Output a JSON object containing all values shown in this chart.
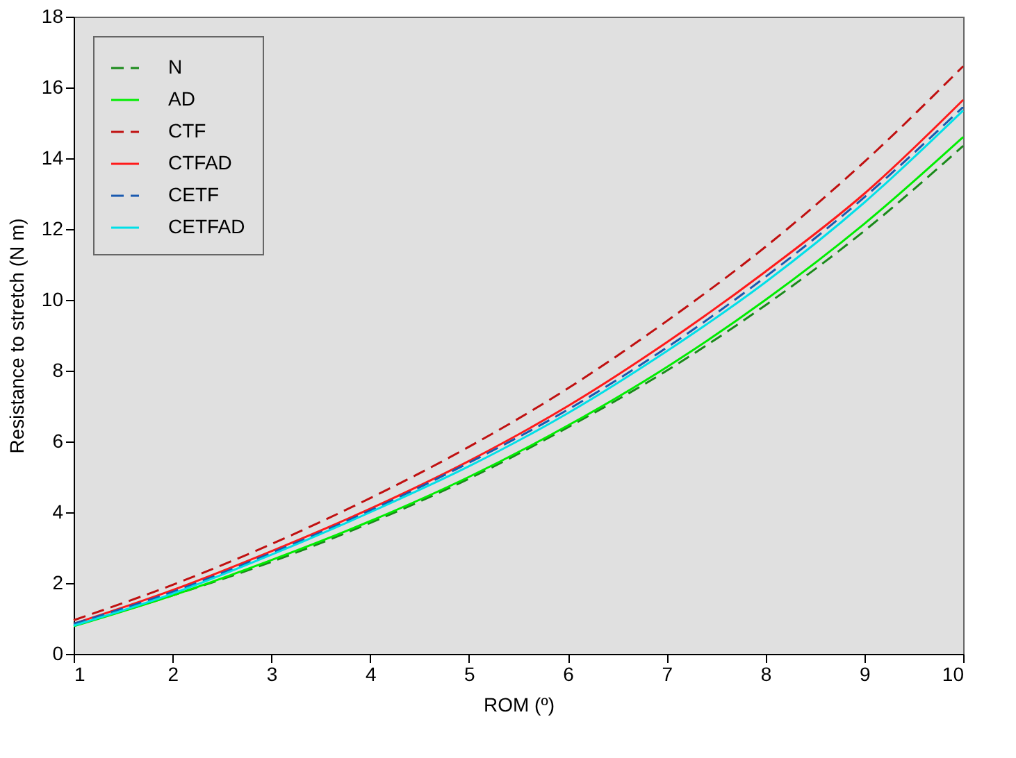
{
  "chart_data": {
    "type": "line",
    "xlabel": "ROM (º)",
    "ylabel": "Resistance to stretch (N m)",
    "x": [
      1,
      2,
      3,
      4,
      5,
      6,
      7,
      8,
      9,
      10
    ],
    "xlim": [
      1,
      10
    ],
    "xticks": [
      1,
      2,
      3,
      4,
      5,
      6,
      7,
      8,
      9,
      10
    ],
    "ylim": [
      0,
      18
    ],
    "yticks": [
      0,
      2,
      4,
      6,
      8,
      10,
      12,
      14,
      16,
      18
    ],
    "grid": false,
    "legend": "top left",
    "marker": "none",
    "series": [
      {
        "name": "N",
        "color": "#1a8a1a",
        "line_style": "dashed",
        "values": [
          0.8,
          1.65,
          2.6,
          3.7,
          4.95,
          6.4,
          8.0,
          9.85,
          11.95,
          14.35
        ]
      },
      {
        "name": "AD",
        "color": "#00ee00",
        "line_style": "solid",
        "values": [
          0.78,
          1.65,
          2.65,
          3.75,
          5.0,
          6.45,
          8.1,
          10.0,
          12.15,
          14.6
        ]
      },
      {
        "name": "CTF",
        "color": "#c01010",
        "line_style": "dashed",
        "values": [
          0.95,
          1.95,
          3.1,
          4.4,
          5.85,
          7.5,
          9.4,
          11.5,
          13.9,
          16.6
        ]
      },
      {
        "name": "CTFAD",
        "color": "#ff1a1a",
        "line_style": "solid",
        "values": [
          0.85,
          1.8,
          2.9,
          4.1,
          5.45,
          7.0,
          8.8,
          10.8,
          13.0,
          15.65
        ]
      },
      {
        "name": "CETF",
        "color": "#1a5ab0",
        "line_style": "dashed",
        "values": [
          0.85,
          1.75,
          2.85,
          4.05,
          5.4,
          6.9,
          8.65,
          10.65,
          12.9,
          15.45
        ]
      },
      {
        "name": "CETFAD",
        "color": "#00e0e8",
        "line_style": "solid",
        "values": [
          0.8,
          1.7,
          2.8,
          4.0,
          5.3,
          6.8,
          8.55,
          10.5,
          12.75,
          15.35
        ]
      }
    ]
  }
}
